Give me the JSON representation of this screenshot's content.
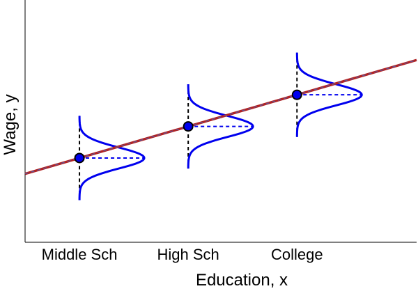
{
  "chart_data": {
    "type": "line",
    "title": "",
    "xlabel": "Education, x",
    "ylabel": "Wage, y",
    "categories": [
      "Middle Sch",
      "High Sch",
      "College"
    ],
    "x": [
      1,
      2,
      3
    ],
    "y": [
      1.0,
      1.3,
      1.6
    ],
    "xlim": [
      0.5,
      4.1
    ],
    "ylim": [
      0.2,
      2.5
    ],
    "grid": false,
    "legend": "none",
    "regression_line": {
      "intercept": 0.7,
      "slope": 0.3,
      "color": "#b22222",
      "dash_color": "#5a5aa0"
    },
    "conditional_distributions": {
      "type": "normal",
      "sd": 0.1,
      "color": "#0000ee"
    },
    "point_color": "#0000ee"
  }
}
